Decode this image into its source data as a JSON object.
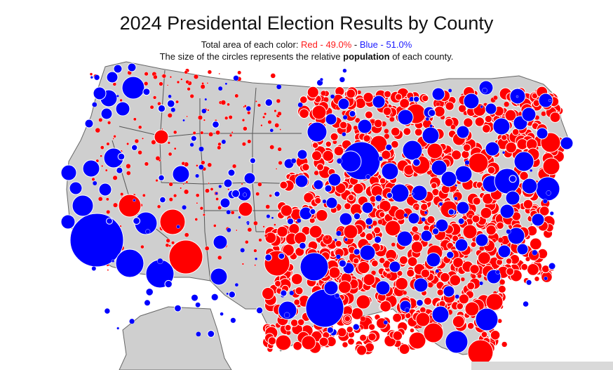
{
  "title": "2024 Presidental Election Results by County",
  "subtitle": {
    "prefix": "Total area of each color: ",
    "red_label": "Red - 49.0%",
    "separator": " - ",
    "blue_label": "Blue - 51.0%",
    "line2_before": "The size of the circles represents the relative ",
    "line2_bold": "population",
    "line2_after": " of each county."
  },
  "area_share": {
    "red_percent": 49.0,
    "blue_percent": 51.0
  },
  "colors": {
    "red": "#ff0000",
    "blue": "#0000ff",
    "land": "#cfcfcf",
    "border": "#555555",
    "circle_stroke": "#ffffff"
  }
}
